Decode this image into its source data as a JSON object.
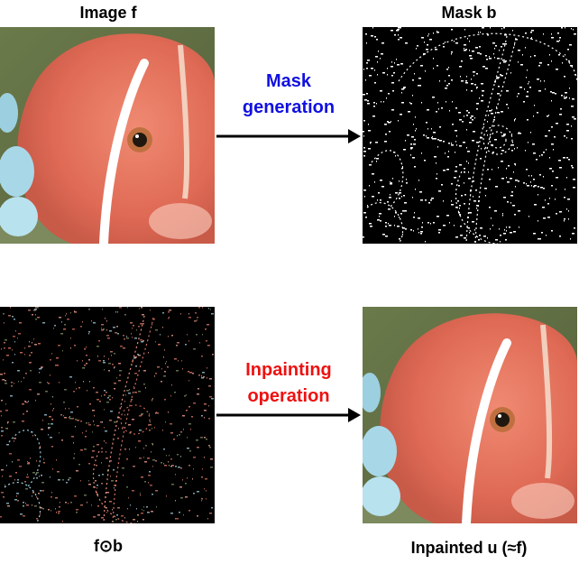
{
  "top_left": {
    "title": "Image f"
  },
  "top_right": {
    "title": "Mask b"
  },
  "bottom_left": {
    "caption": "f⊙b"
  },
  "bottom_right": {
    "caption": "Inpainted u (≈f)"
  },
  "arrow_top": {
    "line1": "Mask",
    "line2": "generation",
    "color": "#1010e0"
  },
  "arrow_bottom": {
    "line1": "Inpainting",
    "line2": "operation",
    "color": "#ee1111"
  },
  "colors": {
    "fish_body": "#e5735f",
    "background_green": "#6f7c52",
    "mask_bg": "#000000",
    "stripe": "#ffffff"
  }
}
